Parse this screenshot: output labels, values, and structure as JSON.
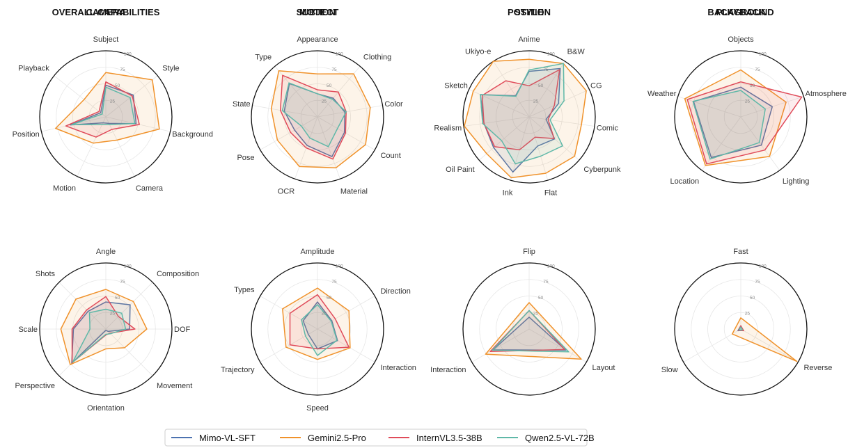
{
  "chart_data": {
    "type": "radar",
    "rlim": [
      0,
      100
    ],
    "rticks": [
      "25",
      "50",
      "75",
      "100"
    ],
    "legend": {
      "placement": "bottom-center",
      "series": [
        {
          "name": "Mimo-VL-SFT",
          "color": "#4c72b0"
        },
        {
          "name": "Gemini2.5-Pro",
          "color": "#f0922b"
        },
        {
          "name": "InternVL3.5-38B",
          "color": "#e04b5a"
        },
        {
          "name": "Qwen2.5-VL-72B",
          "color": "#5fb8a8"
        }
      ]
    },
    "charts": [
      {
        "title": "OVERALL CAPABILITIES",
        "axes": [
          "Subject",
          "Style",
          "Background",
          "Camera",
          "Motion",
          "Position",
          "Playback"
        ],
        "series": [
          {
            "values": [
              48,
              53,
              47,
              11,
              10,
              55,
              10
            ]
          },
          {
            "values": [
              67,
              90,
              83,
              39,
              44,
              78,
              42
            ]
          },
          {
            "values": [
              53,
              51,
              52,
              21,
              34,
              62,
              13
            ]
          },
          {
            "values": [
              45,
              47,
              45,
              13,
              13,
              53,
              7
            ]
          }
        ]
      },
      {
        "title": "SUBJECT",
        "axes": [
          "Appearance",
          "Clothing",
          "Color",
          "Count",
          "Material",
          "OCR",
          "Pose",
          "State",
          "Type"
        ],
        "series": [
          {
            "values": [
              35,
              37,
              42,
              47,
              64,
              46,
              40,
              51,
              66
            ]
          },
          {
            "values": [
              65,
              85,
              81,
              84,
              82,
              80,
              70,
              71,
              91
            ]
          },
          {
            "values": [
              41,
              49,
              44,
              49,
              68,
              50,
              47,
              57,
              82
            ]
          },
          {
            "values": [
              35,
              35,
              44,
              35,
              48,
              34,
              28,
              54,
              67
            ]
          }
        ]
      },
      {
        "title": "STYLE",
        "axes": [
          "Anime",
          "B&W",
          "CG",
          "Comic",
          "Cyberpunk",
          "Flat",
          "Ink",
          "Oil Paint",
          "Realism",
          "Sketch",
          "Ukiyo-e"
        ],
        "series": [
          {
            "values": [
              69,
              87,
              49,
              26,
              51,
              46,
              87,
              71,
              69,
              81,
              38
            ]
          },
          {
            "values": [
              87,
              96,
              95,
              80,
              91,
              89,
              96,
              85,
              99,
              93,
              100
            ]
          },
          {
            "values": [
              47,
              85,
              42,
              29,
              50,
              32,
              52,
              69,
              69,
              78,
              65
            ]
          },
          {
            "values": [
              71,
              96,
              58,
              32,
              67,
              62,
              74,
              55,
              71,
              81,
              37
            ]
          }
        ]
      },
      {
        "title": "BACKGROUND",
        "axes": [
          "Objects",
          "Atmosphere",
          "Lighting",
          "Location",
          "Weather"
        ],
        "series": [
          {
            "values": [
              45,
              50,
              53,
              76,
              75
            ]
          },
          {
            "values": [
              71,
              72,
              74,
              91,
              89
            ]
          },
          {
            "values": [
              53,
              97,
              62,
              88,
              85
            ]
          },
          {
            "values": [
              40,
              39,
              48,
              79,
              76
            ]
          }
        ]
      },
      {
        "title": "CAMERA",
        "axes": [
          "Angle",
          "Composition",
          "DOF",
          "Movement",
          "Orientation",
          "Perspective",
          "Scale",
          "Shots"
        ],
        "series": [
          {
            "values": [
              41,
              52,
              36,
              5,
              2,
              73,
              49,
              38
            ]
          },
          {
            "values": [
              60,
              59,
              62,
              40,
              30,
              76,
              68,
              64
            ]
          },
          {
            "values": [
              49,
              27,
              44,
              9,
              9,
              72,
              51,
              41
            ]
          },
          {
            "values": [
              30,
              34,
              30,
              10,
              8,
              71,
              24,
              35
            ]
          }
        ]
      },
      {
        "title": "MOTION",
        "axes": [
          "Amplitude",
          "Direction",
          "Interaction",
          "Speed",
          "Trajectory",
          "Types"
        ],
        "series": [
          {
            "values": [
              41,
              25,
              35,
              30,
              16,
              25
            ]
          },
          {
            "values": [
              62,
              55,
              57,
              46,
              55,
              61
            ]
          },
          {
            "values": [
              52,
              31,
              55,
              30,
              48,
              48
            ]
          },
          {
            "values": [
              37,
              24,
              34,
              40,
              21,
              28
            ]
          }
        ]
      },
      {
        "title": "POSITION",
        "axes": [
          "Flip",
          "Layout",
          "Interaction"
        ],
        "series": [
          {
            "values": [
              18,
              64,
              63
            ]
          },
          {
            "values": [
              40,
              91,
              76
            ]
          },
          {
            "values": [
              28,
              62,
              68
            ]
          },
          {
            "values": [
              28,
              69,
              64
            ]
          }
        ]
      },
      {
        "title": "PLAYBACK",
        "axes": [
          "Fast",
          "Reverse",
          "Slow"
        ],
        "series": [
          {
            "values": [
              5,
              4,
              5
            ]
          },
          {
            "values": [
              17,
              98,
              15
            ]
          },
          {
            "values": [
              5,
              5,
              4
            ]
          },
          {
            "values": [
              3,
              3,
              3
            ]
          }
        ]
      }
    ]
  }
}
